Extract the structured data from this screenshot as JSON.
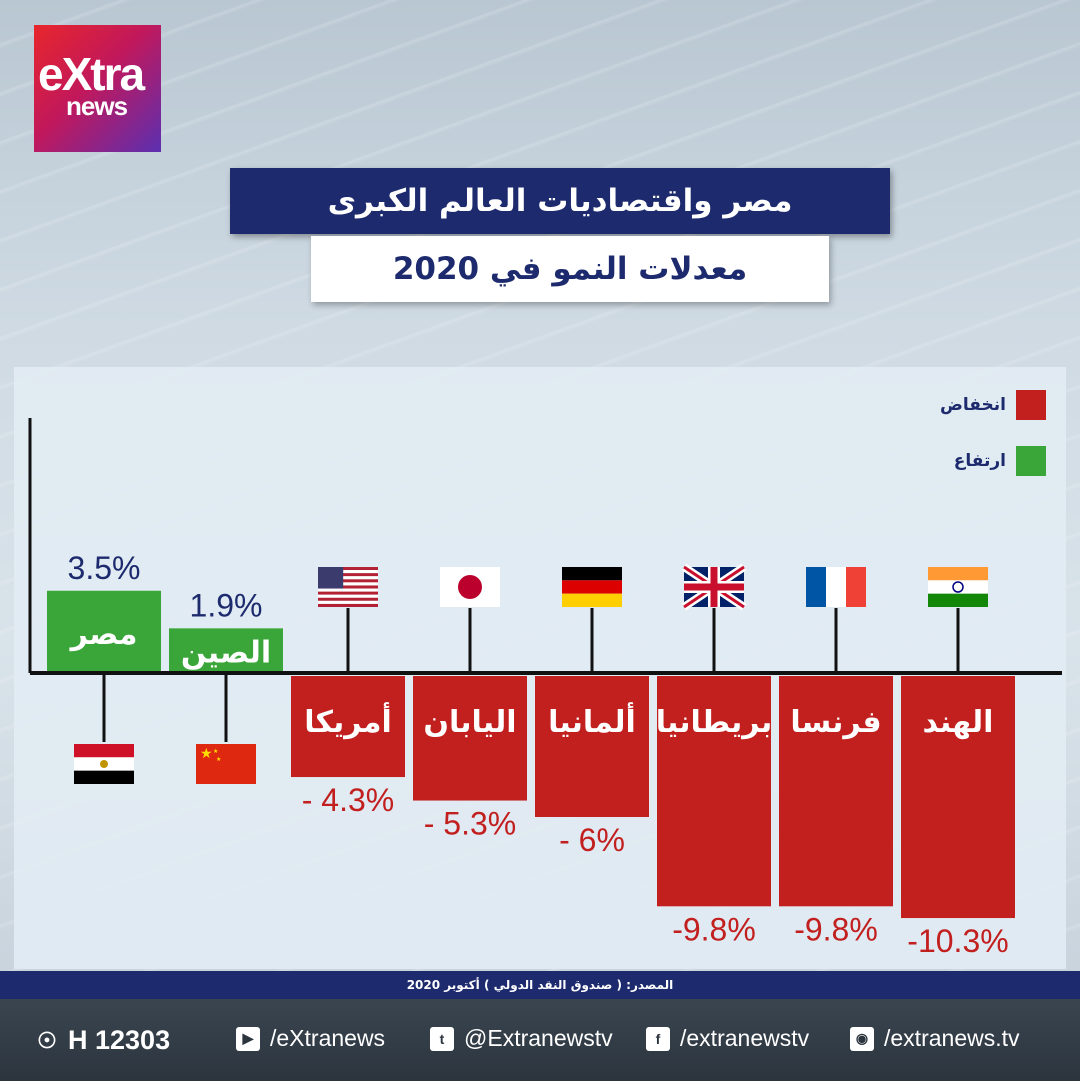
{
  "brand": {
    "logo_top": "eXtra",
    "logo_bottom": "news"
  },
  "title": "مصر واقتصاديات العالم الكبرى",
  "subtitle": "معدلات النمو في 2020",
  "legend": [
    {
      "label": "انخفاض",
      "color": "#c21f1f"
    },
    {
      "label": "ارتفاع",
      "color": "#3aa63a"
    }
  ],
  "source": "المصدر: ( صندوق النقد الدولي ) أكتوبر 2020",
  "footer": {
    "channel": "H 12303",
    "youtube": "/eXtranews",
    "twitter": "@Extranewstv",
    "facebook": "/extranewstv",
    "instagram": "/extranews.tv"
  },
  "colors": {
    "positive": "#3aa63a",
    "negative": "#c21f1f",
    "value_positive": "#1d2b6e",
    "value_negative": "#c21f1f",
    "axis": "#111111"
  },
  "chart_data": {
    "type": "bar",
    "categories": [
      "مصر",
      "الصين",
      "أمريكا",
      "اليابان",
      "ألمانيا",
      "بريطانيا",
      "فرنسا",
      "الهند"
    ],
    "flags": [
      "egypt-flag-icon",
      "china-flag-icon",
      "usa-flag-icon",
      "japan-flag-icon",
      "germany-flag-icon",
      "uk-flag-icon",
      "france-flag-icon",
      "india-flag-icon"
    ],
    "values": [
      3.5,
      1.9,
      -4.3,
      -5.3,
      -6,
      -9.8,
      -9.8,
      -10.3
    ],
    "value_labels": [
      "3.5%",
      "1.9%",
      "- 4.3%",
      "- 5.3%",
      "- 6%",
      "-9.8%",
      "-9.8%",
      "-10.3%"
    ],
    "ylim": [
      -10.3,
      3.5
    ],
    "grid": false,
    "legend_position": "top-right"
  }
}
